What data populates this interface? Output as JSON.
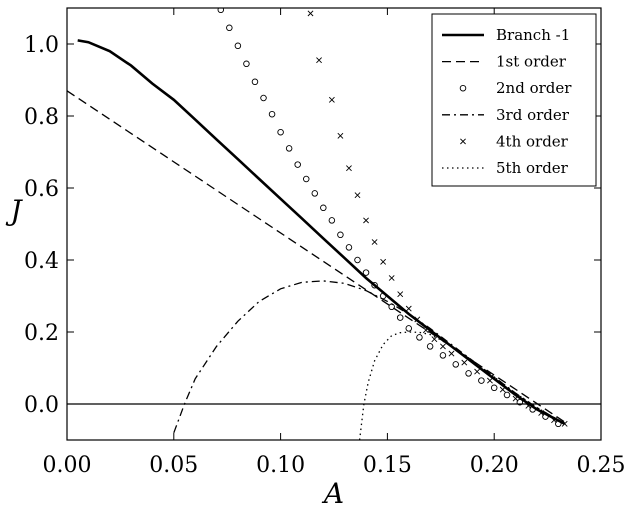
{
  "chart_data": {
    "type": "line",
    "xlabel": "A",
    "ylabel": "J",
    "xlim": [
      0.0,
      0.25
    ],
    "ylim": [
      -0.1,
      1.1
    ],
    "xticks": [
      0.0,
      0.05,
      0.1,
      0.15,
      0.2,
      0.25
    ],
    "xtick_labels": [
      "0.00",
      "0.05",
      "0.10",
      "0.15",
      "0.20",
      "0.25"
    ],
    "yticks": [
      0.0,
      0.2,
      0.4,
      0.6,
      0.8,
      1.0
    ],
    "ytick_labels": [
      "0.0",
      "0.2",
      "0.4",
      "0.6",
      "0.8",
      "1.0"
    ],
    "grid": false,
    "legend_position": "top-right",
    "hline_y": 0.0,
    "series": [
      {
        "name": "Branch -1",
        "style": "solid",
        "x": [
          0.005,
          0.01,
          0.02,
          0.03,
          0.04,
          0.05,
          0.06,
          0.07,
          0.08,
          0.09,
          0.1,
          0.11,
          0.12,
          0.13,
          0.14,
          0.15,
          0.16,
          0.17,
          0.18,
          0.19,
          0.2,
          0.21,
          0.22,
          0.233
        ],
        "y": [
          1.01,
          1.005,
          0.98,
          0.94,
          0.89,
          0.845,
          0.79,
          0.735,
          0.68,
          0.625,
          0.57,
          0.515,
          0.46,
          0.405,
          0.35,
          0.3,
          0.25,
          0.205,
          0.16,
          0.115,
          0.07,
          0.025,
          -0.015,
          -0.055
        ]
      },
      {
        "name": "1st order",
        "style": "dashed",
        "x": [
          0.0,
          0.233
        ],
        "y": [
          0.87,
          -0.05
        ]
      },
      {
        "name": "2nd order",
        "style": "circle",
        "x": [
          0.072,
          0.076,
          0.08,
          0.084,
          0.088,
          0.092,
          0.096,
          0.1,
          0.104,
          0.108,
          0.112,
          0.116,
          0.12,
          0.124,
          0.128,
          0.132,
          0.136,
          0.14,
          0.144,
          0.148,
          0.152,
          0.156,
          0.16,
          0.165,
          0.17,
          0.176,
          0.182,
          0.188,
          0.194,
          0.2,
          0.206,
          0.212,
          0.218,
          0.224,
          0.23
        ],
        "y": [
          1.095,
          1.045,
          0.995,
          0.945,
          0.895,
          0.85,
          0.805,
          0.755,
          0.71,
          0.665,
          0.625,
          0.585,
          0.545,
          0.51,
          0.47,
          0.435,
          0.4,
          0.365,
          0.33,
          0.3,
          0.27,
          0.24,
          0.21,
          0.185,
          0.16,
          0.135,
          0.11,
          0.085,
          0.065,
          0.045,
          0.025,
          0.005,
          -0.015,
          -0.035,
          -0.055
        ]
      },
      {
        "name": "3rd order",
        "style": "dashdot",
        "x": [
          0.05,
          0.055,
          0.06,
          0.07,
          0.08,
          0.09,
          0.1,
          0.11,
          0.12,
          0.13,
          0.14,
          0.15,
          0.16,
          0.17,
          0.18,
          0.19,
          0.2,
          0.21,
          0.22,
          0.233
        ],
        "y": [
          -0.08,
          0.0,
          0.07,
          0.16,
          0.23,
          0.285,
          0.32,
          0.338,
          0.342,
          0.335,
          0.315,
          0.285,
          0.25,
          0.21,
          0.165,
          0.12,
          0.075,
          0.03,
          -0.01,
          -0.055
        ]
      },
      {
        "name": "4th order",
        "style": "x",
        "x": [
          0.114,
          0.118,
          0.124,
          0.128,
          0.132,
          0.136,
          0.14,
          0.144,
          0.148,
          0.152,
          0.156,
          0.16,
          0.164,
          0.168,
          0.172,
          0.176,
          0.18,
          0.186,
          0.192,
          0.198,
          0.204,
          0.21,
          0.216,
          0.222,
          0.228,
          0.233
        ],
        "y": [
          1.085,
          0.955,
          0.845,
          0.745,
          0.655,
          0.58,
          0.51,
          0.45,
          0.395,
          0.35,
          0.305,
          0.265,
          0.235,
          0.205,
          0.18,
          0.16,
          0.14,
          0.115,
          0.09,
          0.065,
          0.04,
          0.015,
          -0.005,
          -0.025,
          -0.045,
          -0.055
        ]
      },
      {
        "name": "5th order",
        "style": "dotted",
        "x": [
          0.137,
          0.139,
          0.141,
          0.144,
          0.148,
          0.152,
          0.156,
          0.16,
          0.165,
          0.17,
          0.175,
          0.18,
          0.185,
          0.19,
          0.2,
          0.21,
          0.22,
          0.233
        ],
        "y": [
          -0.1,
          0.0,
          0.06,
          0.12,
          0.165,
          0.19,
          0.198,
          0.2,
          0.199,
          0.193,
          0.178,
          0.16,
          0.14,
          0.12,
          0.075,
          0.03,
          -0.01,
          -0.055
        ]
      }
    ]
  }
}
